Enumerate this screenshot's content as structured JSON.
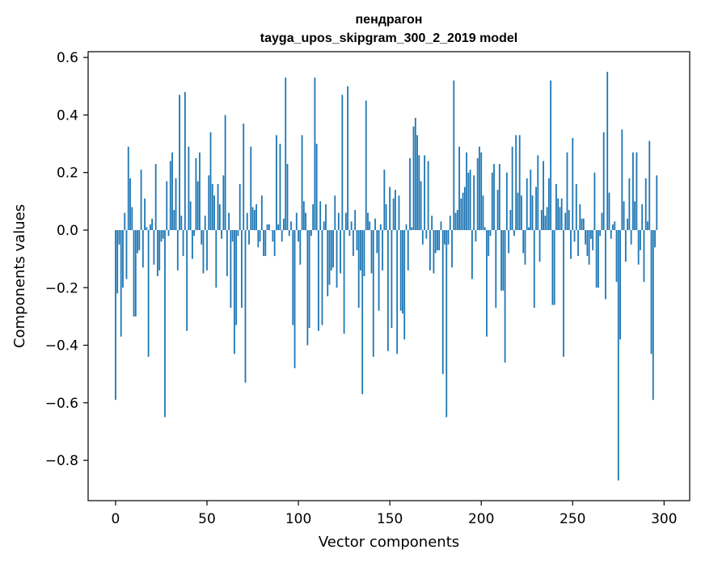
{
  "chart_data": {
    "type": "bar",
    "title_line1": "пендрагон",
    "title_line2": "tayga_upos_skipgram_300_2_2019 model",
    "xlabel": "Vector components",
    "ylabel": "Components values",
    "xlim": [
      -15,
      314
    ],
    "ylim": [
      -0.94,
      0.62
    ],
    "xticks": [
      0,
      50,
      100,
      150,
      200,
      250,
      300
    ],
    "xtick_labels": [
      "0",
      "50",
      "100",
      "150",
      "200",
      "250",
      "300"
    ],
    "yticks": [
      0.6,
      0.4,
      0.2,
      0.0,
      -0.2,
      -0.4,
      -0.6,
      -0.8
    ],
    "ytick_labels": [
      "0.6",
      "0.4",
      "0.2",
      "0.0",
      "−0.2",
      "−0.4",
      "−0.6",
      "−0.8"
    ],
    "bar_color": "#1f77b4",
    "values": [
      -0.59,
      -0.22,
      -0.05,
      -0.37,
      -0.2,
      0.06,
      -0.17,
      0.29,
      0.18,
      0.08,
      -0.3,
      -0.3,
      -0.08,
      -0.07,
      0.21,
      -0.13,
      0.11,
      0.01,
      -0.44,
      0.02,
      0.04,
      -0.12,
      0.23,
      -0.16,
      -0.14,
      -0.04,
      -0.03,
      -0.65,
      0.17,
      -0.02,
      0.24,
      0.27,
      0.07,
      0.18,
      -0.14,
      0.47,
      0.05,
      -0.09,
      0.48,
      -0.35,
      0.29,
      0.1,
      -0.1,
      -0.02,
      0.25,
      0.17,
      0.27,
      -0.05,
      -0.15,
      0.05,
      -0.14,
      0.19,
      0.34,
      0.16,
      0.12,
      -0.2,
      0.16,
      0.09,
      -0.03,
      0.19,
      0.4,
      -0.16,
      0.06,
      -0.27,
      -0.04,
      -0.43,
      -0.33,
      -0.02,
      0.16,
      -0.27,
      0.37,
      -0.53,
      0.06,
      -0.05,
      0.29,
      0.08,
      0.07,
      0.09,
      -0.06,
      -0.04,
      0.12,
      -0.09,
      -0.09,
      0.02,
      0.02,
      0.0,
      -0.04,
      -0.09,
      0.33,
      0.02,
      0.3,
      -0.04,
      0.04,
      0.53,
      0.23,
      -0.02,
      0.03,
      -0.33,
      -0.48,
      0.06,
      -0.04,
      -0.12,
      0.33,
      0.1,
      0.06,
      -0.4,
      -0.34,
      -0.02,
      0.09,
      0.53,
      0.3,
      -0.35,
      0.1,
      -0.33,
      0.03,
      0.09,
      -0.23,
      -0.19,
      -0.14,
      -0.13,
      0.12,
      -0.2,
      0.06,
      -0.15,
      0.47,
      -0.36,
      0.06,
      0.5,
      -0.02,
      0.03,
      -0.09,
      0.07,
      -0.07,
      -0.27,
      -0.14,
      -0.57,
      -0.16,
      0.45,
      0.06,
      0.03,
      -0.15,
      -0.44,
      0.04,
      -0.08,
      -0.28,
      0.02,
      -0.14,
      0.21,
      0.09,
      -0.42,
      0.15,
      -0.34,
      0.11,
      0.14,
      -0.43,
      0.12,
      -0.28,
      -0.29,
      -0.38,
      0.02,
      -0.14,
      0.25,
      0.01,
      0.36,
      0.39,
      0.33,
      0.26,
      0.17,
      -0.05,
      0.26,
      -0.03,
      0.24,
      -0.14,
      0.05,
      -0.15,
      -0.08,
      -0.07,
      -0.07,
      0.03,
      -0.5,
      -0.05,
      -0.65,
      -0.05,
      0.05,
      -0.13,
      0.52,
      0.06,
      0.07,
      0.29,
      0.11,
      0.13,
      0.15,
      0.27,
      0.2,
      0.21,
      -0.17,
      0.19,
      -0.04,
      0.25,
      0.29,
      0.27,
      0.12,
      0.01,
      -0.37,
      -0.09,
      -0.02,
      0.2,
      0.23,
      -0.27,
      0.14,
      0.23,
      -0.21,
      -0.21,
      -0.46,
      0.2,
      -0.08,
      0.07,
      0.29,
      -0.02,
      0.33,
      0.13,
      0.33,
      0.12,
      -0.08,
      -0.12,
      0.18,
      0.01,
      0.21,
      0.12,
      -0.27,
      0.15,
      0.26,
      -0.11,
      0.07,
      0.24,
      0.05,
      0.08,
      0.18,
      0.52,
      -0.26,
      -0.26,
      0.16,
      0.11,
      0.08,
      0.11,
      -0.44,
      0.06,
      0.27,
      0.07,
      -0.1,
      0.32,
      -0.04,
      0.16,
      -0.09,
      0.09,
      0.04,
      0.04,
      -0.05,
      -0.09,
      -0.12,
      -0.03,
      -0.07,
      0.2,
      -0.2,
      -0.2,
      -0.02,
      0.06,
      0.34,
      -0.24,
      0.55,
      0.13,
      -0.03,
      0.02,
      0.03,
      -0.18,
      -0.87,
      -0.38,
      0.35,
      0.1,
      -0.11,
      0.04,
      0.18,
      -0.05,
      0.27,
      0.1,
      0.27,
      -0.12,
      -0.07,
      0.09,
      -0.18,
      0.18,
      0.03,
      0.31,
      -0.43,
      -0.59,
      -0.06,
      0.19
    ]
  }
}
